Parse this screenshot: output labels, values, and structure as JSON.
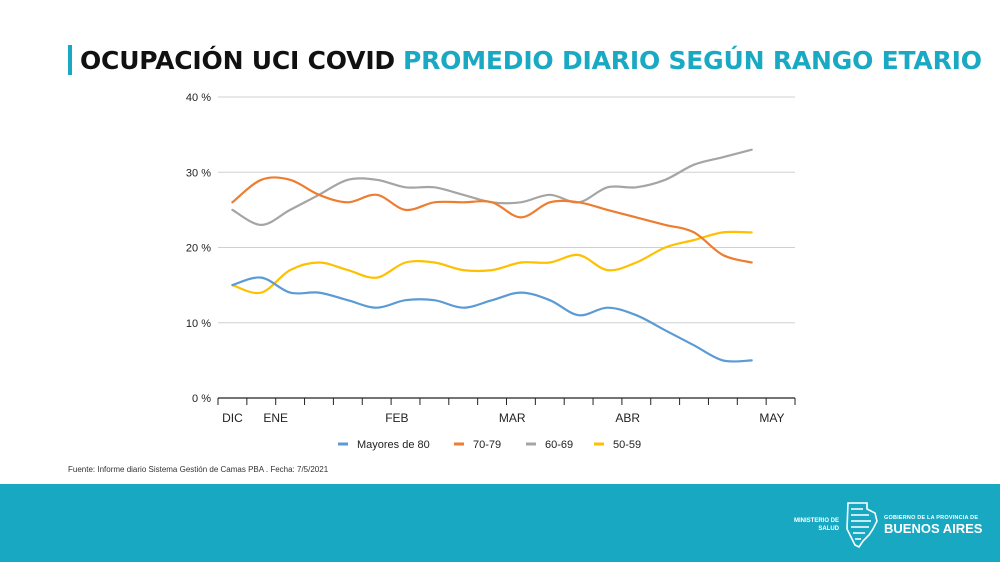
{
  "header": {
    "title_main": "OCUPACIÓN UCI COVID",
    "title_accent": "PROMEDIO DIARIO SEGÚN RANGO ETARIO"
  },
  "source": "Fuente: Informe diario Sistema Gestión de Camas PBA . Fecha: 7/5/2021",
  "footer": {
    "ministerio_line1": "MINISTERIO DE",
    "ministerio_line2": "SALUD",
    "gov_small": "GOBIERNO DE LA PROVINCIA DE",
    "gov_big": "BUENOS AIRES"
  },
  "colors": {
    "accent": "#1aa9c3",
    "footer": "#19a8c2",
    "mayores80": "#5b9bd5",
    "s7079": "#ed7d31",
    "s6069": "#a5a5a5",
    "s5059": "#ffc000"
  },
  "chart_data": {
    "type": "line",
    "title": "",
    "xlabel": "",
    "ylabel": "",
    "ylim": [
      0,
      40
    ],
    "yticks": [
      {
        "value": 0,
        "label": "0 %"
      },
      {
        "value": 10,
        "label": "10 %"
      },
      {
        "value": 20,
        "label": "20 %"
      },
      {
        "value": 30,
        "label": "30 %"
      },
      {
        "value": 40,
        "label": "40 %"
      }
    ],
    "x_points": 20,
    "x_tick_count": 20,
    "x_labels": [
      {
        "index": 0,
        "label": "DIC"
      },
      {
        "index": 1.5,
        "label": "ENE"
      },
      {
        "index": 5.7,
        "label": "FEB"
      },
      {
        "index": 9.7,
        "label": "MAR"
      },
      {
        "index": 13.7,
        "label": "ABR"
      },
      {
        "index": 18.7,
        "label": "MAY"
      }
    ],
    "grid": true,
    "legend_position": "bottom",
    "series": [
      {
        "key": "mayores80",
        "name": "Mayores de 80",
        "color": "#5b9bd5",
        "values": [
          15,
          16,
          14,
          14,
          13,
          12,
          13,
          13,
          12,
          13,
          14,
          13,
          11,
          12,
          11,
          9,
          7,
          5,
          5
        ]
      },
      {
        "key": "s7079",
        "name": "70-79",
        "color": "#ed7d31",
        "values": [
          26,
          29,
          29,
          27,
          26,
          27,
          25,
          26,
          26,
          26,
          24,
          26,
          26,
          25,
          24,
          23,
          22,
          19,
          18
        ]
      },
      {
        "key": "s6069",
        "name": "60-69",
        "color": "#a5a5a5",
        "values": [
          25,
          23,
          25,
          27,
          29,
          29,
          28,
          28,
          27,
          26,
          26,
          27,
          26,
          28,
          28,
          29,
          31,
          32,
          33
        ]
      },
      {
        "key": "s5059",
        "name": "50-59",
        "color": "#ffc000",
        "values": [
          15,
          14,
          17,
          18,
          17,
          16,
          18,
          18,
          17,
          17,
          18,
          18,
          19,
          17,
          18,
          20,
          21,
          22,
          22
        ]
      }
    ]
  }
}
